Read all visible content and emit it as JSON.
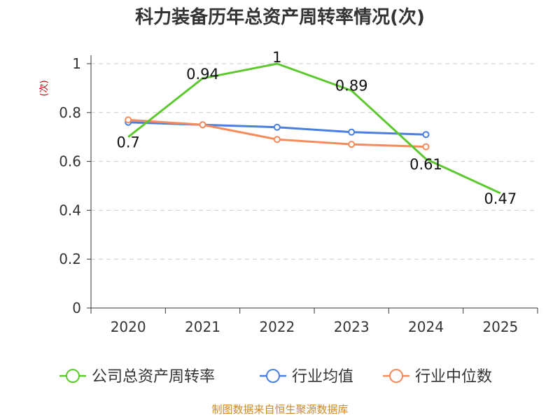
{
  "chart_data": {
    "type": "line",
    "title": "科力装备历年总资产周转率情况(次)",
    "ylabel": "(次)",
    "xlabel": "",
    "categories": [
      "2020",
      "2021",
      "2022",
      "2023",
      "2024",
      "2025"
    ],
    "ylim": [
      0,
      1
    ],
    "yticks": [
      "0",
      "0.2",
      "0.4",
      "0.6",
      "0.8",
      "1"
    ],
    "grid": true,
    "legend_position": "bottom",
    "series": [
      {
        "name": "公司总资产周转率",
        "color": "#5cc82e",
        "values": [
          0.7,
          0.94,
          1,
          0.89,
          0.61,
          0.47
        ],
        "labels": [
          "0.7",
          "0.94",
          "1",
          "0.89",
          "0.61",
          "0.47"
        ],
        "show_markers": false,
        "show_labels": true
      },
      {
        "name": "行业均值",
        "color": "#4a7fe0",
        "values": [
          0.76,
          0.75,
          0.74,
          0.72,
          0.71,
          null
        ],
        "show_markers": true,
        "show_labels": false
      },
      {
        "name": "行业中位数",
        "color": "#f58a5a",
        "values": [
          0.77,
          0.75,
          0.69,
          0.67,
          0.66,
          null
        ],
        "show_markers": true,
        "show_labels": false
      }
    ],
    "source": "制图数据来自恒生聚源数据库"
  }
}
